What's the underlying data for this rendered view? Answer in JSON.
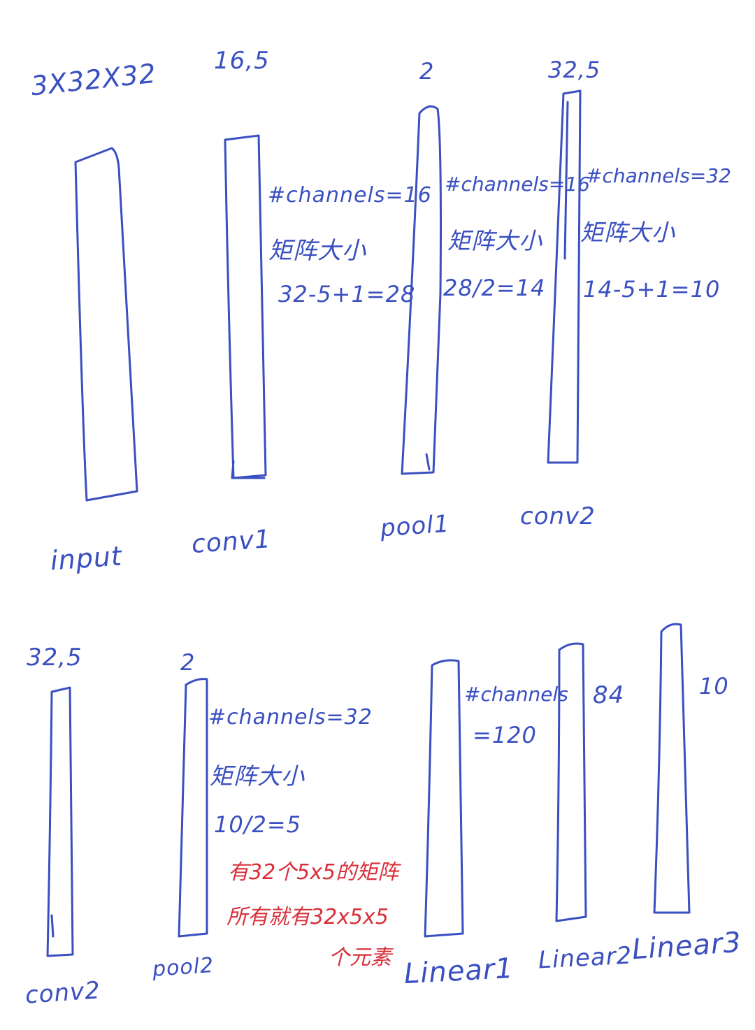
{
  "colors": {
    "ink": "#3a4fc0",
    "red_ink": "#d8303a",
    "paper": "#ffffff"
  },
  "top_row": {
    "input": {
      "dim": "3X32X32",
      "label": "input"
    },
    "conv1": {
      "kernel": "16,5",
      "label": "conv1",
      "notes": [
        "#channels=16",
        "矩阵大小",
        "32-5+1=28"
      ]
    },
    "pool1": {
      "kernel": "2",
      "label": "pool1",
      "notes": [
        "#channels=16",
        "矩阵大小",
        "28/2=14"
      ]
    },
    "conv2": {
      "kernel": "32,5",
      "label": "conv2",
      "notes": [
        "#channels=32",
        "矩阵大小",
        "14-5+1=10"
      ]
    }
  },
  "bottom_row": {
    "conv2": {
      "kernel": "32,5",
      "label": "conv2"
    },
    "pool2": {
      "kernel": "2",
      "label": "pool2",
      "notes": [
        "#channels=32",
        "矩阵大小",
        "10/2=5"
      ],
      "red_notes": [
        "有32个5x5的矩阵",
        "所有就有32x5x5",
        "个元素"
      ]
    },
    "linear1": {
      "label": "Linear1",
      "notes": [
        "#channels",
        "=120"
      ]
    },
    "linear2": {
      "label": "Linear2",
      "value": "84"
    },
    "linear3": {
      "label": "Linear3",
      "value": "10"
    }
  }
}
